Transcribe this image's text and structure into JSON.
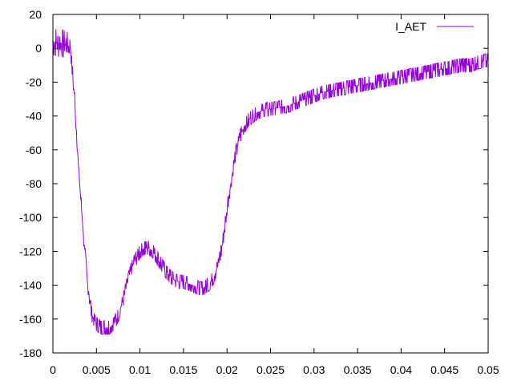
{
  "chart_data": {
    "type": "line",
    "grid": false,
    "legend_position": "top-right",
    "xlim": [
      0,
      0.05
    ],
    "ylim": [
      -180,
      20
    ],
    "x_ticks": [
      0,
      0.005,
      0.01,
      0.015,
      0.02,
      0.025,
      0.03,
      0.035,
      0.04,
      0.045,
      0.05
    ],
    "x_tick_labels": [
      "0",
      "0.005",
      "0.01",
      "0.015",
      "0.02",
      "0.025",
      "0.03",
      "0.035",
      "0.04",
      "0.045",
      "0.05"
    ],
    "y_ticks": [
      20,
      0,
      -20,
      -40,
      -60,
      -80,
      -100,
      -120,
      -140,
      -160,
      -180
    ],
    "y_tick_labels": [
      "20",
      "0",
      "-20",
      "-40",
      "-60",
      "-80",
      "-100",
      "-120",
      "-140",
      "-160",
      "-180"
    ],
    "series": [
      {
        "name": "I_AET",
        "color": "#9400d3",
        "x": [
          0,
          0.0005,
          0.001,
          0.0015,
          0.002,
          0.0025,
          0.003,
          0.0035,
          0.004,
          0.0045,
          0.005,
          0.0055,
          0.006,
          0.0065,
          0.007,
          0.0075,
          0.008,
          0.0085,
          0.009,
          0.0095,
          0.01,
          0.0105,
          0.011,
          0.0115,
          0.012,
          0.0125,
          0.013,
          0.0135,
          0.014,
          0.0145,
          0.015,
          0.0155,
          0.016,
          0.0165,
          0.017,
          0.0175,
          0.018,
          0.0185,
          0.019,
          0.0195,
          0.02,
          0.0205,
          0.021,
          0.0215,
          0.022,
          0.0225,
          0.023,
          0.0235,
          0.024,
          0.0245,
          0.025,
          0.026,
          0.027,
          0.028,
          0.029,
          0.03,
          0.031,
          0.032,
          0.033,
          0.034,
          0.035,
          0.036,
          0.037,
          0.038,
          0.039,
          0.04,
          0.041,
          0.042,
          0.043,
          0.044,
          0.045,
          0.046,
          0.047,
          0.048,
          0.049,
          0.05
        ],
        "y": [
          4,
          3,
          3,
          2,
          1,
          -30,
          -75,
          -110,
          -140,
          -158,
          -163,
          -165,
          -165,
          -165,
          -163,
          -158,
          -150,
          -140,
          -130,
          -125,
          -120,
          -118,
          -118,
          -120,
          -124,
          -128,
          -132,
          -135,
          -137,
          -138,
          -138,
          -139,
          -140,
          -141,
          -142,
          -141,
          -139,
          -135,
          -128,
          -115,
          -95,
          -78,
          -62,
          -52,
          -46,
          -42,
          -40,
          -38,
          -37,
          -36,
          -36,
          -35,
          -34,
          -32,
          -30,
          -28,
          -26,
          -25,
          -24,
          -23,
          -22,
          -21,
          -20,
          -19,
          -18,
          -17,
          -16,
          -15,
          -14,
          -13,
          -12,
          -11,
          -10,
          -10,
          -8,
          -7
        ],
        "noise": [
          8,
          8,
          8,
          8,
          6,
          4,
          3,
          3,
          4,
          5,
          5,
          6,
          6,
          6,
          6,
          6,
          6,
          6,
          6,
          6,
          6,
          6,
          6,
          6,
          6,
          6,
          5,
          5,
          5,
          5,
          5,
          5,
          5,
          6,
          6,
          6,
          6,
          5,
          5,
          4,
          4,
          4,
          4,
          4,
          4,
          4,
          4,
          4,
          4,
          4,
          4,
          4,
          4,
          4,
          4,
          4,
          4,
          4,
          5,
          5,
          5,
          5,
          5,
          5,
          5,
          5,
          5,
          5,
          5,
          5,
          5,
          5,
          5,
          6,
          6,
          6
        ]
      }
    ]
  }
}
